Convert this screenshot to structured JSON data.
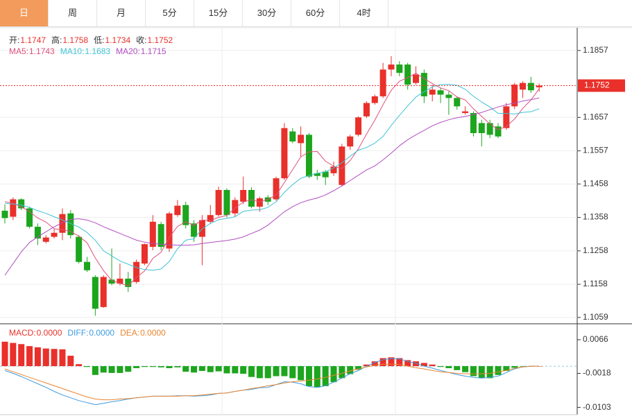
{
  "tabs": {
    "items": [
      "日",
      "周",
      "月",
      "5分",
      "15分",
      "30分",
      "60分",
      "4时"
    ],
    "selected": 0
  },
  "chart_data": {
    "type": "candlestick",
    "ohlc_header": [
      {
        "label": "开:",
        "value": 1.1747
      },
      {
        "label": "高:",
        "value": 1.1758
      },
      {
        "label": "低:",
        "value": 1.1734
      },
      {
        "label": "收:",
        "value": 1.1752
      }
    ],
    "last_price": 1.1752,
    "ylim": [
      1.104,
      1.1925
    ],
    "yticks": [
      1.1059,
      1.1158,
      1.1258,
      1.1358,
      1.1458,
      1.1557,
      1.1657,
      1.1857
    ],
    "grid": true,
    "colors": {
      "up": "#e9302a",
      "down": "#1da51d"
    },
    "candles": {
      "open": [
        1.1378,
        1.136,
        1.1412,
        1.1385,
        1.133,
        1.1285,
        1.13,
        1.1312,
        1.137,
        1.13,
        1.1225,
        1.118,
        1.109,
        1.1172,
        1.116,
        1.1175,
        1.1165,
        1.122,
        1.127,
        1.1338,
        1.1265,
        1.1365,
        1.1395,
        1.134,
        1.13,
        1.1345,
        1.1365,
        1.144,
        1.137,
        1.1405,
        1.144,
        1.139,
        1.1418,
        1.1412,
        1.1475,
        1.1615,
        1.158,
        1.1605,
        1.149,
        1.1495,
        1.149,
        1.1455,
        1.157,
        1.1605,
        1.166,
        1.17,
        1.172,
        1.18,
        1.1815,
        1.1815,
        1.176,
        1.179,
        1.1725,
        1.1738,
        1.1725,
        1.1715,
        1.167,
        1.167,
        1.164,
        1.164,
        1.163,
        1.1625,
        1.169,
        1.174,
        1.176,
        1.1747
      ],
      "high": [
        1.1397,
        1.1418,
        1.1415,
        1.139,
        1.134,
        1.1305,
        1.1325,
        1.1385,
        1.138,
        1.1305,
        1.124,
        1.1185,
        1.1185,
        1.1265,
        1.122,
        1.1195,
        1.1232,
        1.128,
        1.1365,
        1.1345,
        1.1375,
        1.141,
        1.1405,
        1.135,
        1.1365,
        1.1395,
        1.145,
        1.1445,
        1.1418,
        1.148,
        1.1448,
        1.142,
        1.1425,
        1.148,
        1.164,
        1.1625,
        1.163,
        1.161,
        1.15,
        1.15,
        1.1525,
        1.1578,
        1.1605,
        1.166,
        1.1705,
        1.1725,
        1.182,
        1.184,
        1.1825,
        1.182,
        1.181,
        1.18,
        1.1755,
        1.1745,
        1.1735,
        1.172,
        1.169,
        1.1675,
        1.165,
        1.165,
        1.164,
        1.17,
        1.176,
        1.1765,
        1.1778,
        1.1758
      ],
      "low": [
        1.134,
        1.135,
        1.138,
        1.1325,
        1.1275,
        1.128,
        1.1295,
        1.129,
        1.1295,
        1.122,
        1.1195,
        1.1064,
        1.1088,
        1.1155,
        1.1155,
        1.1135,
        1.116,
        1.1215,
        1.126,
        1.126,
        1.1255,
        1.136,
        1.1325,
        1.1285,
        1.1215,
        1.134,
        1.136,
        1.1358,
        1.136,
        1.1398,
        1.1385,
        1.1375,
        1.1395,
        1.1408,
        1.147,
        1.158,
        1.154,
        1.1475,
        1.147,
        1.1455,
        1.1482,
        1.1452,
        1.156,
        1.16,
        1.1655,
        1.1695,
        1.1715,
        1.178,
        1.178,
        1.174,
        1.1755,
        1.17,
        1.1705,
        1.17,
        1.1665,
        1.168,
        1.1665,
        1.16,
        1.157,
        1.1595,
        1.1595,
        1.162,
        1.1682,
        1.1715,
        1.173,
        1.1734
      ],
      "close": [
        1.1356,
        1.1412,
        1.1385,
        1.133,
        1.1295,
        1.1298,
        1.1312,
        1.1368,
        1.1305,
        1.1225,
        1.12,
        1.1085,
        1.118,
        1.116,
        1.1175,
        1.115,
        1.1225,
        1.1278,
        1.1345,
        1.127,
        1.137,
        1.1393,
        1.1335,
        1.13,
        1.135,
        1.1365,
        1.144,
        1.1365,
        1.141,
        1.144,
        1.139,
        1.1415,
        1.1405,
        1.1475,
        1.1625,
        1.1585,
        1.1605,
        1.148,
        1.1482,
        1.1478,
        1.151,
        1.157,
        1.16,
        1.1657,
        1.17,
        1.172,
        1.18,
        1.1815,
        1.179,
        1.1755,
        1.1785,
        1.172,
        1.174,
        1.1725,
        1.1715,
        1.169,
        1.1675,
        1.161,
        1.161,
        1.1605,
        1.16,
        1.169,
        1.1755,
        1.176,
        1.1738,
        1.1752
      ]
    },
    "series": [
      {
        "name": "MA5:",
        "last": 1.1743,
        "color": "#e0507c",
        "values": [
          1.1405,
          1.14,
          1.139,
          1.1375,
          1.1356,
          1.1344,
          1.1324,
          1.1321,
          1.1316,
          1.1302,
          1.1282,
          1.1237,
          1.1199,
          1.117,
          1.1161,
          1.1154,
          1.1178,
          1.1198,
          1.1235,
          1.1254,
          1.1298,
          1.1331,
          1.1345,
          1.1334,
          1.135,
          1.1349,
          1.1358,
          1.1364,
          1.1386,
          1.1404,
          1.1411,
          1.1404,
          1.1412,
          1.1425,
          1.1462,
          1.1501,
          1.1539,
          1.1554,
          1.1555,
          1.1526,
          1.1511,
          1.1504,
          1.1528,
          1.1563,
          1.1607,
          1.1649,
          1.1695,
          1.1738,
          1.1765,
          1.1776,
          1.1789,
          1.1773,
          1.1758,
          1.1745,
          1.1737,
          1.1718,
          1.1709,
          1.1683,
          1.166,
          1.1638,
          1.162,
          1.163,
          1.1652,
          1.1684,
          1.1709,
          1.1743
        ]
      },
      {
        "name": "MA10:",
        "last": 1.1683,
        "color": "#3fc3d6",
        "values": [
          1.14,
          1.1398,
          1.1395,
          1.1388,
          1.1378,
          1.137,
          1.136,
          1.135,
          1.134,
          1.1329,
          1.1313,
          1.129,
          1.1258,
          1.1243,
          1.1228,
          1.1218,
          1.1208,
          1.1202,
          1.12,
          1.1204,
          1.1226,
          1.1264,
          1.129,
          1.1294,
          1.1324,
          1.134,
          1.1351,
          1.1355,
          1.136,
          1.1376,
          1.138,
          1.1381,
          1.1388,
          1.1405,
          1.1433,
          1.1456,
          1.1475,
          1.1483,
          1.149,
          1.1494,
          1.1506,
          1.1521,
          1.1541,
          1.1559,
          1.1567,
          1.158,
          1.16,
          1.1633,
          1.1663,
          1.1691,
          1.1718,
          1.1734,
          1.1748,
          1.1755,
          1.1756,
          1.1753,
          1.1741,
          1.172,
          1.1703,
          1.1688,
          1.1669,
          1.1669,
          1.1667,
          1.1672,
          1.1674,
          1.1683
        ]
      },
      {
        "name": "MA20:",
        "last": 1.1715,
        "color": "#b04dc0",
        "values": [
          1.1185,
          1.122,
          1.1255,
          1.1283,
          1.13,
          1.1315,
          1.133,
          1.1342,
          1.1352,
          1.1354,
          1.135,
          1.1342,
          1.133,
          1.132,
          1.131,
          1.13,
          1.129,
          1.1284,
          1.128,
          1.1278,
          1.1276,
          1.1275,
          1.1275,
          1.1276,
          1.128,
          1.1283,
          1.1286,
          1.1289,
          1.1293,
          1.13,
          1.131,
          1.132,
          1.1335,
          1.1355,
          1.1375,
          1.139,
          1.1402,
          1.141,
          1.1416,
          1.1425,
          1.1438,
          1.1452,
          1.1468,
          1.1484,
          1.15,
          1.1512,
          1.153,
          1.155,
          1.1572,
          1.159,
          1.1605,
          1.1618,
          1.1632,
          1.1642,
          1.165,
          1.1656,
          1.166,
          1.1665,
          1.1672,
          1.168,
          1.1688,
          1.1695,
          1.17,
          1.1706,
          1.171,
          1.1715
        ]
      }
    ],
    "macd": {
      "ylim": [
        -0.0121,
        0.0104
      ],
      "yticks": [
        -0.0103,
        -0.0018,
        0.0066
      ],
      "header": [
        {
          "label": "MACD:",
          "value": 0,
          "value_label": "0.0000",
          "color": "#e9302a"
        },
        {
          "label": "DIFF:",
          "value": 0,
          "value_label": "0.0000",
          "color": "#3d9be0"
        },
        {
          "label": "DEA:",
          "value": 0,
          "value_label": "0.0000",
          "color": "#ea8430"
        }
      ],
      "hist": [
        0.0061,
        0.0058,
        0.0055,
        0.005,
        0.0047,
        0.0044,
        0.0043,
        0.0042,
        0.0026,
        0.0005,
        -0.0002,
        -0.0022,
        -0.0016,
        -0.0017,
        -0.0017,
        -0.0014,
        -0.0005,
        -0.0002,
        -0.0002,
        -0.0003,
        -0.0005,
        -0.0003,
        -0.0014,
        -0.0016,
        -0.0012,
        -0.0015,
        -0.0013,
        -0.0018,
        -0.0018,
        -0.0019,
        -0.0027,
        -0.003,
        -0.003,
        -0.0025,
        -0.0025,
        -0.003,
        -0.0035,
        -0.005,
        -0.0053,
        -0.005,
        -0.004,
        -0.003,
        -0.002,
        -0.0009,
        0.0004,
        0.0012,
        0.002,
        0.0022,
        0.002,
        0.0015,
        0.0012,
        0.0008,
        0.0004,
        -0.0002,
        -0.0005,
        -0.001,
        -0.0015,
        -0.0025,
        -0.003,
        -0.003,
        -0.0022,
        -0.0012,
        -0.0004,
        -0.0001,
        -0.0001,
        0
      ],
      "diff": [
        -0.0011,
        -0.0018,
        -0.0026,
        -0.0035,
        -0.0044,
        -0.0053,
        -0.0063,
        -0.0072,
        -0.0079,
        -0.0086,
        -0.0091,
        -0.0096,
        -0.0093,
        -0.0089,
        -0.0086,
        -0.0082,
        -0.0079,
        -0.0077,
        -0.0075,
        -0.0075,
        -0.0075,
        -0.0074,
        -0.0074,
        -0.0075,
        -0.0074,
        -0.0072,
        -0.0068,
        -0.0067,
        -0.0063,
        -0.006,
        -0.0058,
        -0.0054,
        -0.0053,
        -0.0046,
        -0.0039,
        -0.004,
        -0.0044,
        -0.0051,
        -0.0053,
        -0.0049,
        -0.004,
        -0.003,
        -0.0019,
        -0.0011,
        0,
        0.0009,
        0.0016,
        0.0019,
        0.0018,
        0.0012,
        0.0007,
        0,
        -0.0005,
        -0.0011,
        -0.0016,
        -0.0021,
        -0.0025,
        -0.0028,
        -0.003,
        -0.0028,
        -0.0025,
        -0.0016,
        -0.0007,
        -0.0002,
        0,
        0
      ],
      "dea": [
        -0.0007,
        -0.0014,
        -0.0021,
        -0.0028,
        -0.0035,
        -0.0042,
        -0.0049,
        -0.0056,
        -0.0063,
        -0.007,
        -0.0077,
        -0.0082,
        -0.0084,
        -0.0084,
        -0.0082,
        -0.0081,
        -0.0079,
        -0.0077,
        -0.0075,
        -0.0075,
        -0.0075,
        -0.0075,
        -0.0074,
        -0.0074,
        -0.0072,
        -0.007,
        -0.0068,
        -0.0067,
        -0.0063,
        -0.006,
        -0.0056,
        -0.0053,
        -0.0049,
        -0.0046,
        -0.0042,
        -0.0039,
        -0.0037,
        -0.0035,
        -0.0032,
        -0.0028,
        -0.0023,
        -0.0018,
        -0.0012,
        -0.0007,
        -0.0002,
        0.0002,
        0.0005,
        0.0005,
        0.0004,
        0,
        -0.0004,
        -0.0007,
        -0.0011,
        -0.0014,
        -0.0016,
        -0.0018,
        -0.0019,
        -0.0019,
        -0.0019,
        -0.0018,
        -0.0014,
        -0.0011,
        -0.0005,
        -0.0002,
        0,
        0
      ]
    }
  }
}
